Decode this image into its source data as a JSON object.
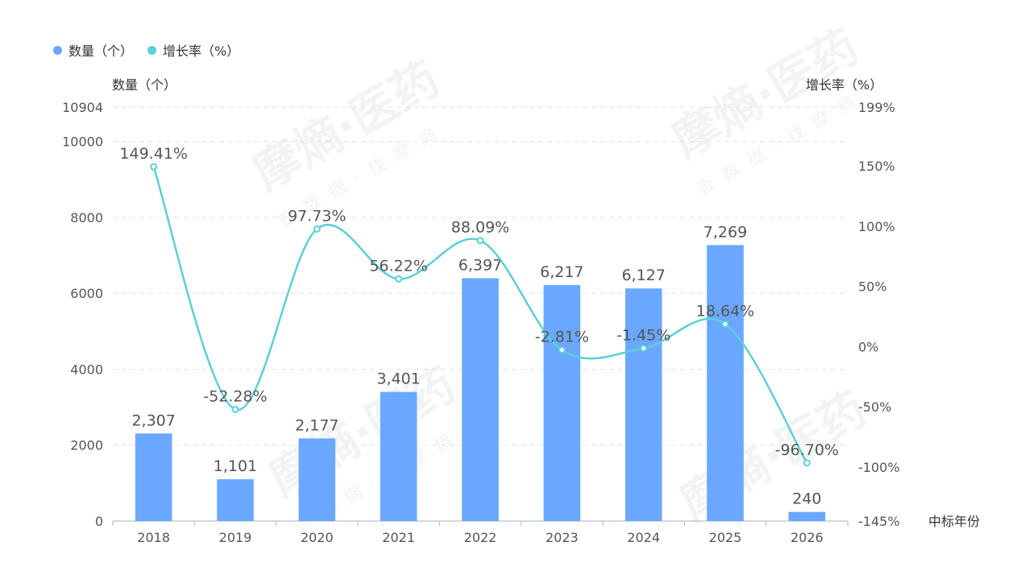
{
  "watermark": {
    "brand": "摩熵·医药",
    "slogan": "查数据·找摩熵"
  },
  "legend": [
    {
      "label": "数量（个）",
      "color": "#6aa7ff"
    },
    {
      "label": "增长率（%）",
      "color": "#5bd0d9"
    }
  ],
  "chart_data": {
    "type": "bar",
    "categories": [
      "2018",
      "2019",
      "2020",
      "2021",
      "2022",
      "2023",
      "2024",
      "2025",
      "2026"
    ],
    "series": [
      {
        "name": "数量（个）",
        "type": "bar",
        "axis": "left",
        "color": "#6aa7ff",
        "values": [
          2307,
          1101,
          2177,
          3401,
          6397,
          6217,
          6127,
          7269,
          240
        ],
        "labels": [
          "2,307",
          "1,101",
          "2,177",
          "3,401",
          "6,397",
          "6,217",
          "6,127",
          "7,269",
          "240"
        ]
      },
      {
        "name": "增长率（%）",
        "type": "line",
        "smooth": true,
        "axis": "right",
        "color": "#5bd0d9",
        "values": [
          149.41,
          -52.28,
          97.73,
          56.22,
          88.09,
          -2.81,
          -1.45,
          18.64,
          -96.7
        ],
        "labels": [
          "149.41%",
          "-52.28%",
          "97.73%",
          "56.22%",
          "88.09%",
          "-2.81%",
          "-1.45%",
          "18.64%",
          "-96.70%"
        ]
      }
    ],
    "ylabel": "数量（个）",
    "y2label": "增长率（%）",
    "xlabel": "中标年份",
    "ylim": [
      0,
      10904
    ],
    "y_ticks": [
      0,
      2000,
      4000,
      6000,
      8000,
      10000,
      10904
    ],
    "y2lim": [
      -145,
      199
    ],
    "y2_ticks": [
      -145,
      -100,
      -50,
      0,
      50,
      100,
      150,
      199
    ],
    "y2_tick_labels": [
      "-145%",
      "-100%",
      "-50%",
      "0%",
      "50%",
      "100%",
      "150%",
      "199%"
    ],
    "grid": true,
    "legend_position": "top-left"
  }
}
